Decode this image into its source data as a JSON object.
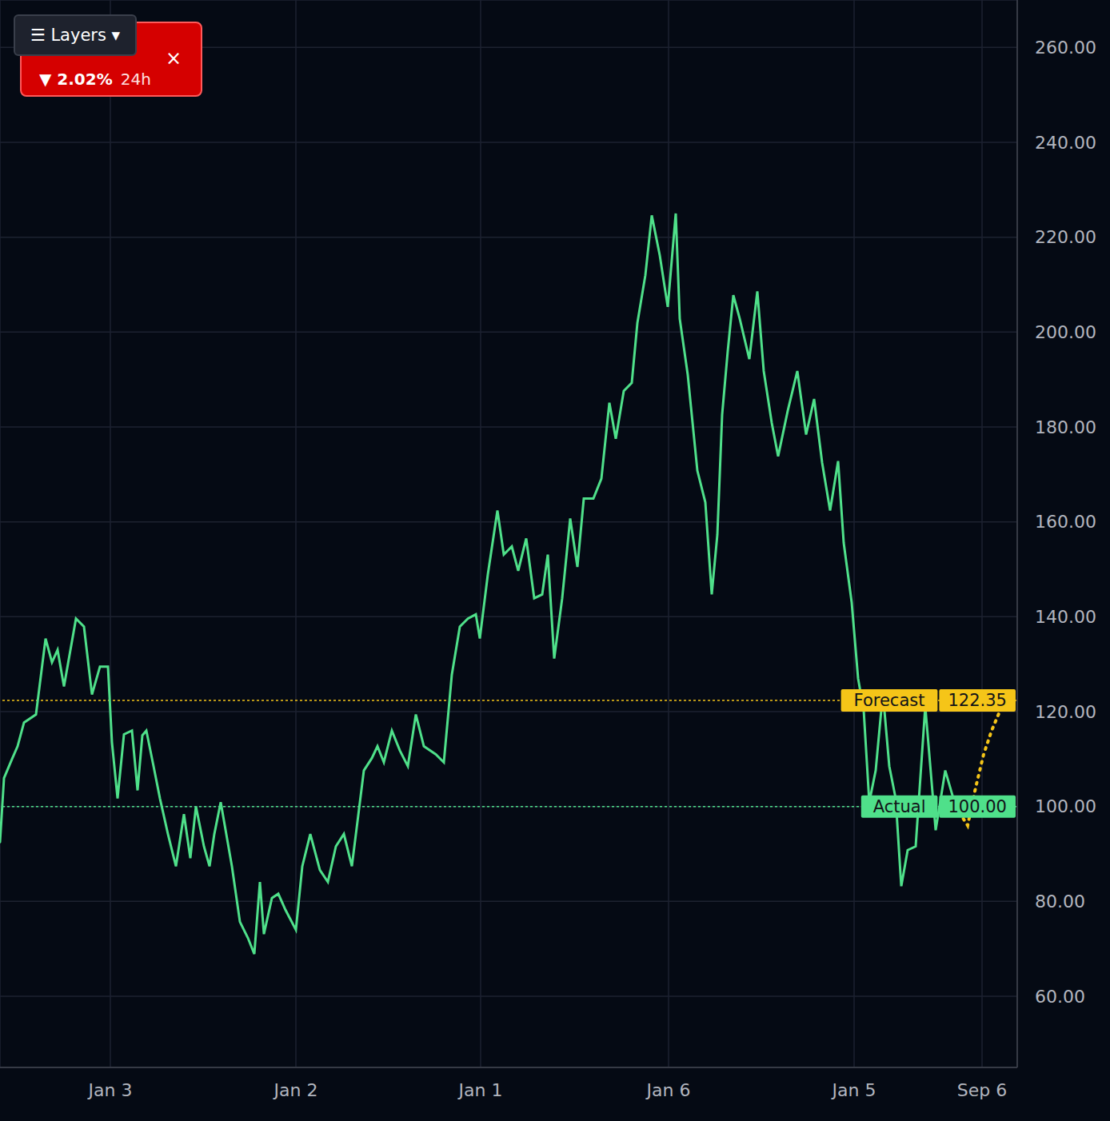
{
  "chart_data": {
    "type": "line",
    "xlim": [
      0,
      1272
    ],
    "xticks": [
      {
        "value": 138,
        "label": "Jan 3"
      },
      {
        "value": 370,
        "label": "Jan 2"
      },
      {
        "value": 601,
        "label": "Jan 1"
      },
      {
        "value": 836,
        "label": "Jan 6"
      },
      {
        "value": 1068,
        "label": "Jan 5"
      },
      {
        "value": 1228,
        "label": "Sep 6"
      }
    ],
    "ylim": [
      45,
      270
    ],
    "yticks": [
      {
        "value": 60,
        "label": "60.00"
      },
      {
        "value": 80,
        "label": "80.00"
      },
      {
        "value": 100,
        "label": "100.00"
      },
      {
        "value": 120,
        "label": "120.00"
      },
      {
        "value": 140,
        "label": "140.00"
      },
      {
        "value": 160,
        "label": "160.00"
      },
      {
        "value": 180,
        "label": "180.00"
      },
      {
        "value": 200,
        "label": "200.00"
      },
      {
        "value": 220,
        "label": "220.00"
      },
      {
        "value": 240,
        "label": "240.00"
      },
      {
        "value": 260,
        "label": "260.00"
      }
    ],
    "grid": true,
    "series": [
      {
        "name": "Actual",
        "color": "#4fe08a",
        "line_style": "solid",
        "x": [
          0,
          5,
          15,
          22,
          30,
          45,
          57,
          65,
          72,
          80,
          95,
          105,
          115,
          125,
          135,
          140,
          147,
          155,
          165,
          172,
          178,
          183,
          192,
          200,
          210,
          220,
          230,
          238,
          245,
          255,
          262,
          268,
          276,
          290,
          300,
          310,
          318,
          325,
          330,
          340,
          348,
          357,
          370,
          378,
          388,
          400,
          410,
          420,
          430,
          440,
          455,
          465,
          472,
          480,
          490,
          500,
          510,
          520,
          530,
          545,
          555,
          565,
          575,
          585,
          595,
          600,
          610,
          622,
          630,
          640,
          648,
          658,
          668,
          678,
          685,
          693,
          703,
          713,
          722,
          730,
          742,
          752,
          762,
          770,
          780,
          790,
          797,
          807,
          815,
          825,
          835,
          845,
          850,
          860,
          872,
          882,
          890,
          897,
          903,
          910,
          917,
          925,
          937,
          947,
          955,
          965,
          973,
          985,
          997,
          1008,
          1018,
          1028,
          1038,
          1048,
          1055,
          1065,
          1073,
          1080,
          1087,
          1095,
          1104,
          1112,
          1120,
          1127,
          1135,
          1145,
          1157,
          1170,
          1182,
          1195
        ],
        "values": [
          92.5,
          106,
          110,
          112.7,
          117.7,
          119.4,
          135.4,
          130.4,
          133,
          125.3,
          139.6,
          137.9,
          123.6,
          129.5,
          129.5,
          113.5,
          101.7,
          115.2,
          116,
          103.4,
          115,
          116,
          108.5,
          101.7,
          94.2,
          87.4,
          98.4,
          89.1,
          100,
          91.6,
          87.4,
          94.2,
          100.9,
          87.4,
          75.7,
          72.3,
          68.9,
          84.1,
          73.1,
          80.7,
          81.6,
          78.2,
          74,
          87.4,
          94.2,
          86.6,
          84.1,
          91.6,
          94.2,
          87.4,
          107.6,
          110.2,
          112.7,
          109.3,
          116,
          111.8,
          108.5,
          119.4,
          112.7,
          111,
          109.3,
          127.8,
          137.9,
          139.6,
          140.5,
          135.4,
          148.9,
          162.4,
          153.1,
          154.8,
          149.7,
          156.5,
          143.9,
          144.7,
          153.1,
          131.2,
          143.9,
          160.7,
          150.5,
          164.9,
          164.9,
          169.1,
          185.1,
          177.5,
          187.6,
          189.3,
          201.9,
          212,
          224.6,
          216.2,
          205.3,
          225,
          202.8,
          191,
          170.8,
          164.1,
          144.7,
          157.3,
          182.6,
          196,
          207.8,
          202.8,
          194.3,
          208.6,
          191.8,
          180.9,
          173.8,
          183.4,
          191.8,
          178.4,
          185.9,
          172.5,
          162.4,
          172.8,
          155.6,
          143,
          127,
          120.3,
          100.9,
          107.6,
          124,
          108.5,
          101.7,
          83.2,
          90.8,
          91.6,
          121.1,
          95,
          107.6,
          100
        ]
      },
      {
        "name": "Forecast",
        "color": "#f5c518",
        "line_style": "dotted",
        "x": [
          1195,
          1210,
          1220,
          1230,
          1240,
          1250,
          1255
        ],
        "values": [
          100,
          96,
          104,
          111,
          116,
          120,
          122
        ]
      }
    ],
    "reference_lines": [
      {
        "name": "Forecast",
        "value": 122.35,
        "label": "122.35",
        "color": "#f5c518"
      },
      {
        "name": "Actual",
        "value": 100,
        "label": "100.00",
        "color": "#4fe08a"
      }
    ],
    "badge": {
      "layers": "☰ Layers ▾",
      "change": "▼ 2.02%",
      "period": "24h",
      "close": "×"
    }
  }
}
